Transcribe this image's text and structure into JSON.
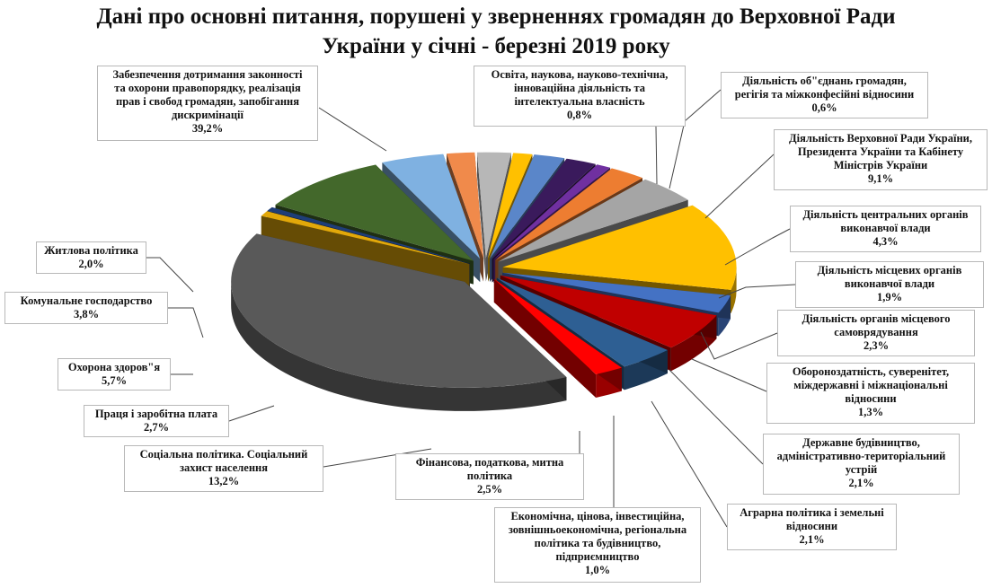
{
  "chart_data": {
    "type": "pie",
    "title_lines": [
      "Дані про основні питання, порушені у зверненнях громадян до Верховної Ради",
      "України у січні - березні 2019 року"
    ],
    "unit": "%",
    "slices": [
      {
        "id": "education",
        "label": "Освіта, наукова, науково-технічна, інноваційна діяльність та інтелектуальна власність",
        "value_text": "0,8%",
        "value": 0.8,
        "color": "#e2a80a"
      },
      {
        "id": "associations",
        "label": "Діяльність об\"єднань громадян, регігія та міжконфесійні відносини",
        "value_text": "0,6%",
        "value": 0.6,
        "color": "#1f3e78"
      },
      {
        "id": "vru",
        "label": "Діяльність Верховної Ради України, Президента України та Кабінету Міністрів України",
        "value_text": "9,1%",
        "value": 9.1,
        "color": "#43682b"
      },
      {
        "id": "central",
        "label": "Діяльність центральних органів виконавчої влади",
        "value_text": "4,3%",
        "value": 4.3,
        "color": "#7fb1e1"
      },
      {
        "id": "local-exec",
        "label": "Діяльність місцевих органів виконавчої влади",
        "value_text": "1,9%",
        "value": 1.9,
        "color": "#f08a4b"
      },
      {
        "id": "self-gov",
        "label": "Діяльність органів місцевого самоврядування",
        "value_text": "2,3%",
        "value": 2.3,
        "color": "#b7b7b7"
      },
      {
        "id": "defense",
        "label": "Обороноздатність, суверенітет, міждержавні і міжнаціональні відносини",
        "value_text": "1,3%",
        "value": 1.3,
        "color": "#ffc000"
      },
      {
        "id": "state-building",
        "label": "Державне будівництво, адміністративно-територіальний устрій",
        "value_text": "2,1%",
        "value": 2.1,
        "color": "#5a86c9"
      },
      {
        "id": "agrarian",
        "label": "Аграрна політика і земельні відносини",
        "value_text": "2,1%",
        "value": 2.1,
        "color": "#3a1a5c"
      },
      {
        "id": "economic",
        "label": "Економічна, цінова, інвестиційна, зовнішньоекономічна, регіональна політика та будівництво, підприємництво",
        "value_text": "1,0%",
        "value": 1.0,
        "color": "#7030a0"
      },
      {
        "id": "financial",
        "label": "Фінансова, податкова, митна політика",
        "value_text": "2,5%",
        "value": 2.5,
        "color": "#ed7d31"
      },
      {
        "id": "gray-unlabeled",
        "label": "",
        "value_text": "",
        "value": 4.2,
        "color": "#a5a5a5"
      },
      {
        "id": "social",
        "label": "Соціальна політика. Соціальний захист населення",
        "value_text": "13,2%",
        "value": 13.2,
        "color": "#ffc000"
      },
      {
        "id": "labour",
        "label": "Праця і заробітна плата",
        "value_text": "2,7%",
        "value": 2.7,
        "color": "#4472c4"
      },
      {
        "id": "health",
        "label": "Охорона здоров\"я",
        "value_text": "5,7%",
        "value": 5.7,
        "color": "#c00000"
      },
      {
        "id": "communal",
        "label": "Комунальне господарство",
        "value_text": "3,8%",
        "value": 3.8,
        "color": "#2e5f93"
      },
      {
        "id": "housing",
        "label": "Житлова політика",
        "value_text": "2,0%",
        "value": 2.0,
        "color": "#ff0000"
      },
      {
        "id": "legality",
        "label": "Забезпечення дотримання законності та охорони правопорядку, реалізація прав і свобод громадян, запобігання дискримінації",
        "value_text": "39,2%",
        "value": 39.2,
        "color": "#595959"
      }
    ],
    "labels": [
      {
        "slice": "legality",
        "lines": [
          "Забезпечення дотримання законності",
          "та охорони правопорядку, реалізація",
          "прав і свобод громадян, запобігання",
          "дискримінації",
          "39,2%"
        ]
      },
      {
        "slice": "education",
        "lines": [
          "Освіта, наукова, науково-технічна,",
          "інноваційна діяльність та",
          "інтелектуальна власність",
          "0,8%"
        ]
      },
      {
        "slice": "associations",
        "lines": [
          "Діяльність об\"єднань громадян,",
          "регігія та міжконфесійні відносини",
          "0,6%"
        ]
      },
      {
        "slice": "vru",
        "lines": [
          "Діяльність Верховної Ради України,",
          "Президента України та Кабінету",
          "Міністрів  України",
          "9,1%"
        ]
      },
      {
        "slice": "central",
        "lines": [
          "Діяльність центральних органів",
          "виконавчої влади",
          "4,3%"
        ]
      },
      {
        "slice": "local-exec",
        "lines": [
          "Діяльність місцевих органів",
          "виконавчої влади",
          "1,9%"
        ]
      },
      {
        "slice": "self-gov",
        "lines": [
          "Діяльність органів місцевого",
          "самоврядування",
          "2,3%"
        ]
      },
      {
        "slice": "defense",
        "lines": [
          "Обороноздатність, суверенітет,",
          "міждержавні і міжнаціональні",
          "відносини",
          "1,3%"
        ]
      },
      {
        "slice": "state-building",
        "lines": [
          "Державне будівництво,",
          "адміністративно-територіальний",
          "устрій",
          "2,1%"
        ]
      },
      {
        "slice": "agrarian",
        "lines": [
          "Аграрна  політика і земельні",
          "відносини",
          "2,1%"
        ]
      },
      {
        "slice": "economic",
        "lines": [
          "Економічна, цінова, інвестиційна,",
          "зовнішньоекономічна, регіональна",
          "політика та будівництво,",
          "підприємництво",
          "1,0%"
        ]
      },
      {
        "slice": "financial",
        "lines": [
          "Фінансова, податкова, митна",
          "політика",
          "2,5%"
        ]
      },
      {
        "slice": "social",
        "lines": [
          "Соціальна політика. Соціальний",
          "захист населення",
          "13,2%"
        ]
      },
      {
        "slice": "labour",
        "lines": [
          "Праця  і заробітна плата",
          "2,7%"
        ]
      },
      {
        "slice": "health",
        "lines": [
          "Охорона здоров\"я",
          "5,7%"
        ]
      },
      {
        "slice": "communal",
        "lines": [
          "Комунальне господарство",
          "3,8%"
        ]
      },
      {
        "slice": "housing",
        "lines": [
          "Житлова політика",
          "2,0%"
        ]
      }
    ],
    "legend": "none",
    "grid": false,
    "style": "3d-exploded-pie"
  }
}
